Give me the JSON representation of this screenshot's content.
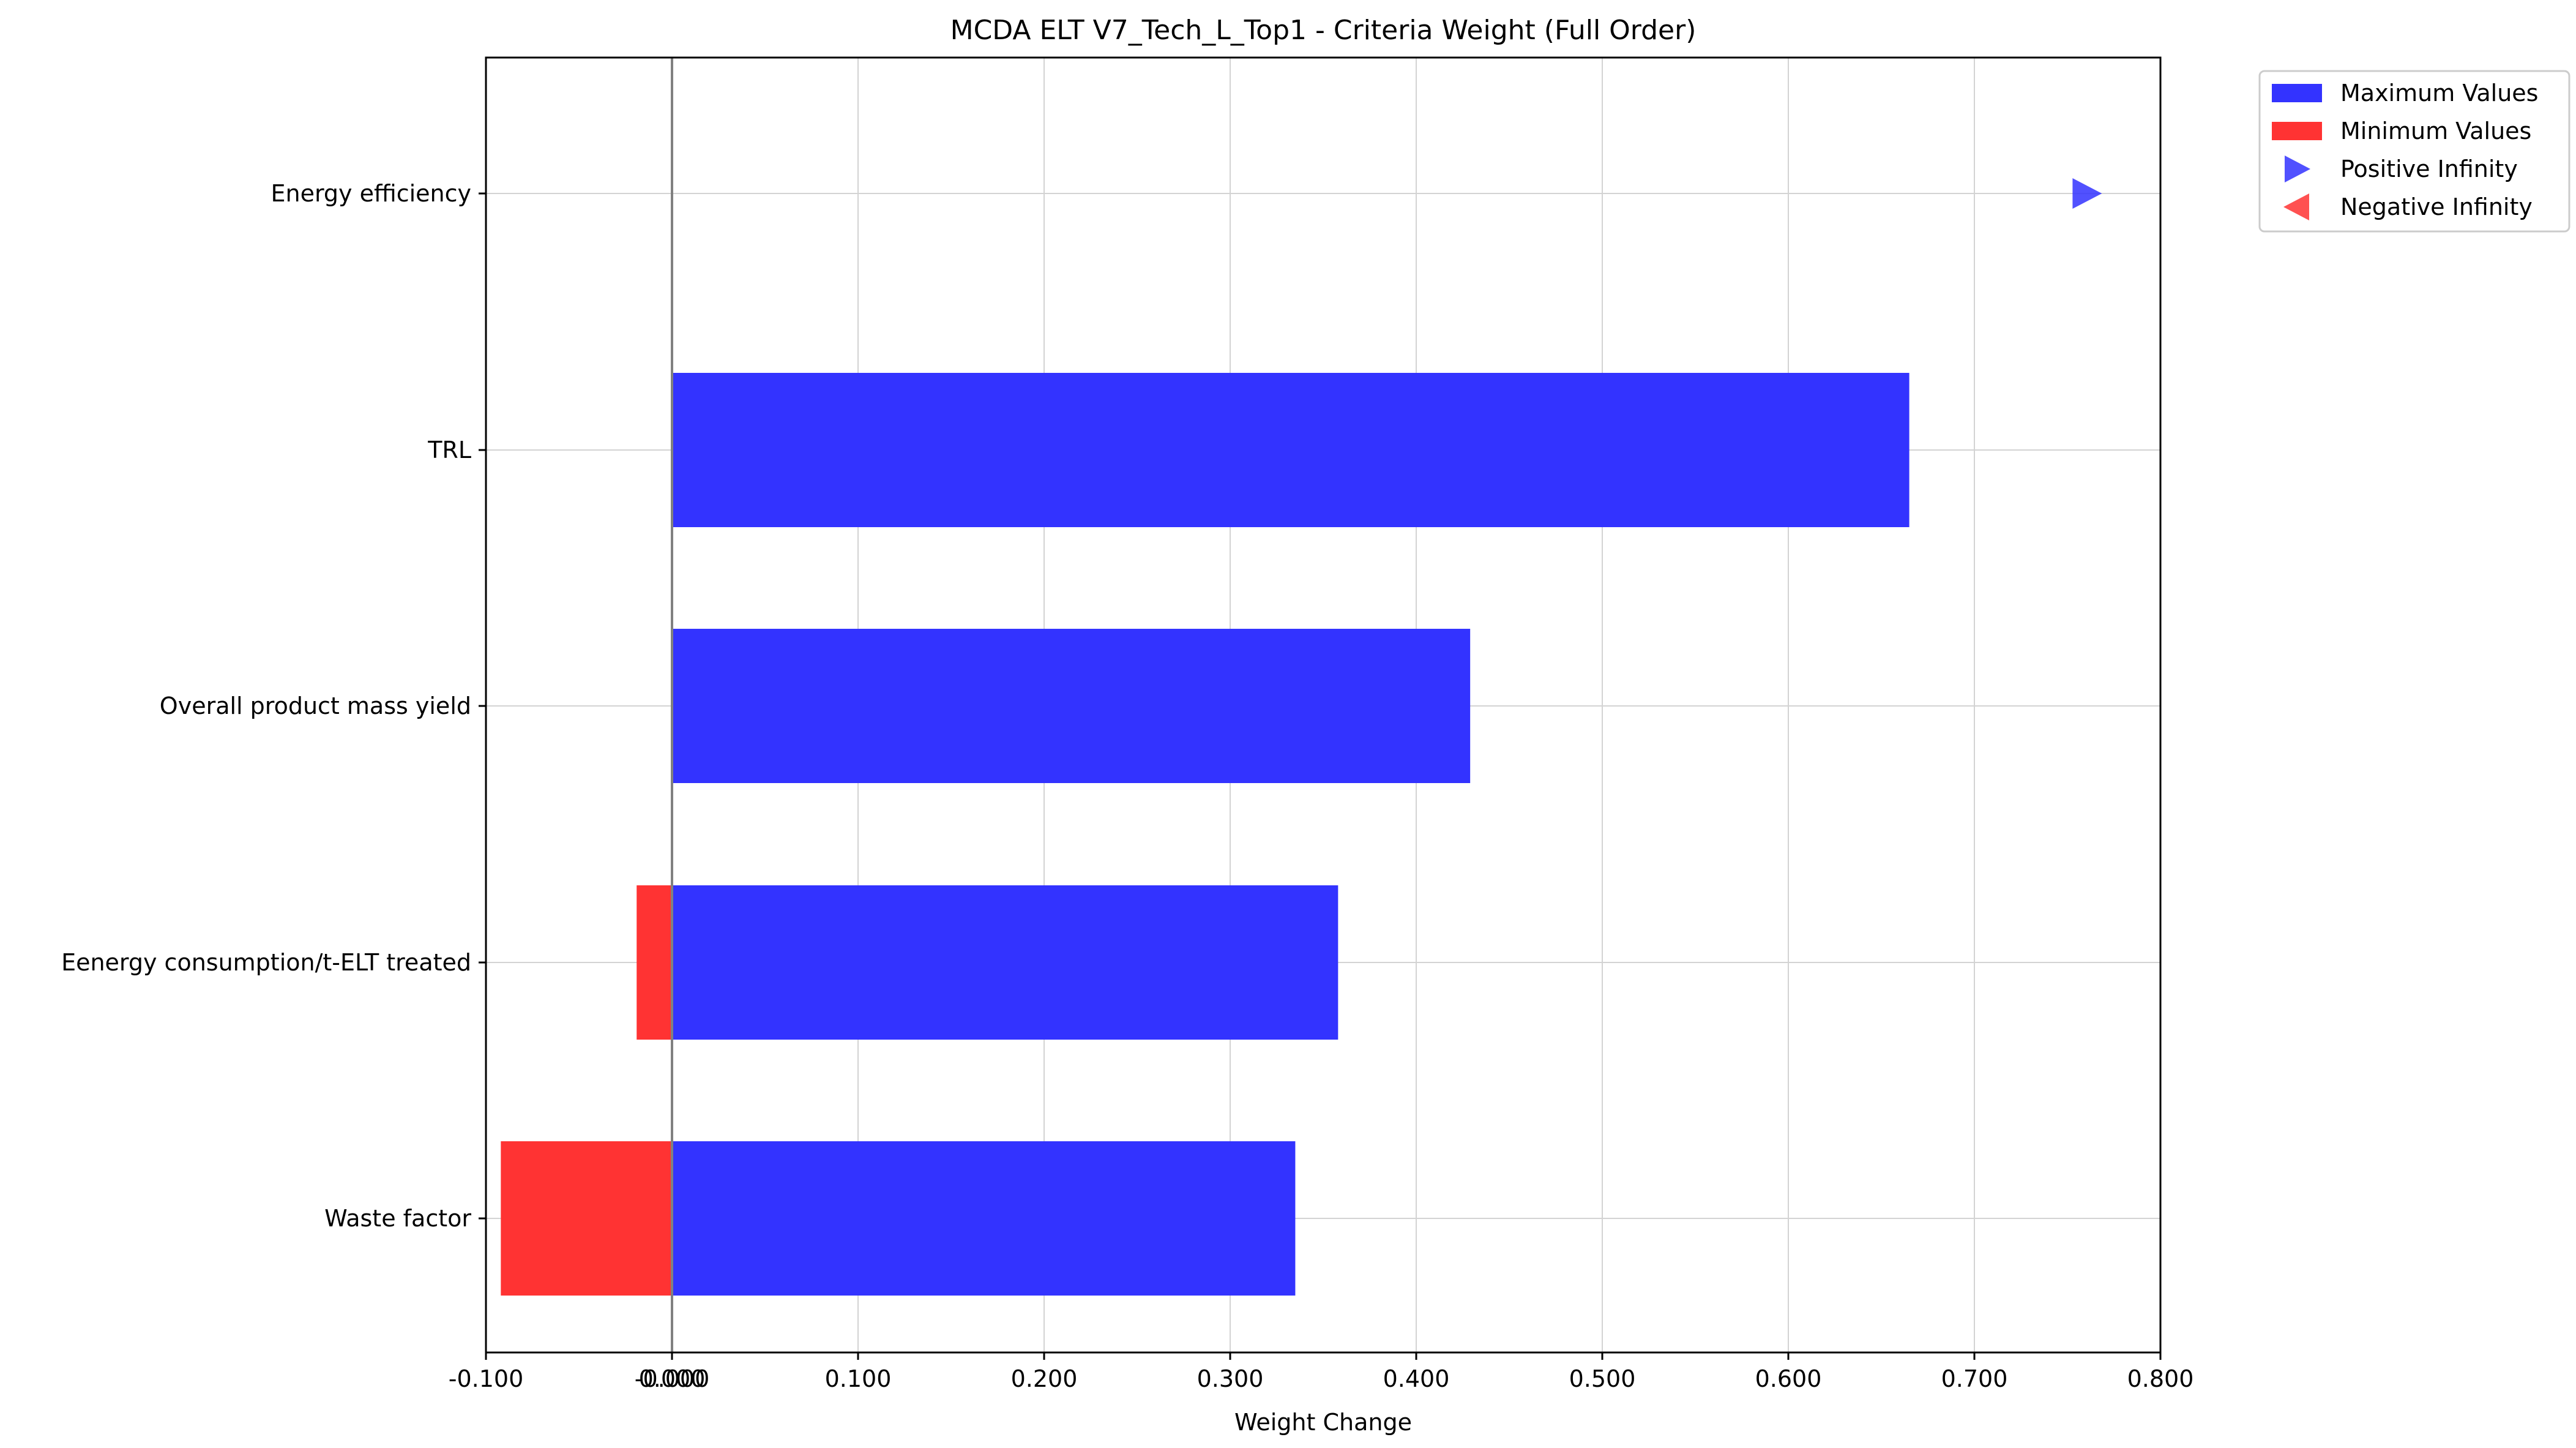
{
  "chart_data": {
    "type": "bar",
    "orientation": "horizontal",
    "title": "MCDA ELT V7_Tech_L_Top1 - Criteria Weight (Full Order)",
    "xlabel": "Weight Change",
    "ylabel": "",
    "xlim": [
      -0.1,
      0.8
    ],
    "xticks": [
      "-0.100",
      "-0.000",
      "0.000",
      "0.100",
      "0.200",
      "0.300",
      "0.400",
      "0.500",
      "0.600",
      "0.700",
      "0.800"
    ],
    "xtick_values": [
      -0.1,
      0.0,
      0.0,
      0.1,
      0.2,
      0.3,
      0.4,
      0.5,
      0.6,
      0.7,
      0.8
    ],
    "grid": true,
    "legend_position": "outside top-right",
    "categories": [
      "Energy efficiency",
      "TRL",
      "Overall product mass yield",
      "Eenergy consumption/t-ELT treated",
      "Waste factor"
    ],
    "series": [
      {
        "name": "Maximum Values",
        "color": "#3333ff",
        "values": [
          null,
          0.665,
          0.429,
          0.358,
          0.335
        ]
      },
      {
        "name": "Minimum Values",
        "color": "#ff3333",
        "values": [
          null,
          null,
          null,
          -0.019,
          -0.092
        ]
      }
    ],
    "markers": [
      {
        "name": "Positive Infinity",
        "category": "Energy efficiency",
        "x": 0.76,
        "direction": "right",
        "color": "#3333ff"
      }
    ],
    "legend": [
      {
        "label": "Maximum Values",
        "kind": "bar",
        "color": "#3333ff"
      },
      {
        "label": "Minimum Values",
        "kind": "bar",
        "color": "#ff3333"
      },
      {
        "label": "Positive Infinity",
        "kind": "triangle-right",
        "color": "#3333ff"
      },
      {
        "label": "Negative Infinity",
        "kind": "triangle-left",
        "color": "#ff3333"
      }
    ]
  }
}
